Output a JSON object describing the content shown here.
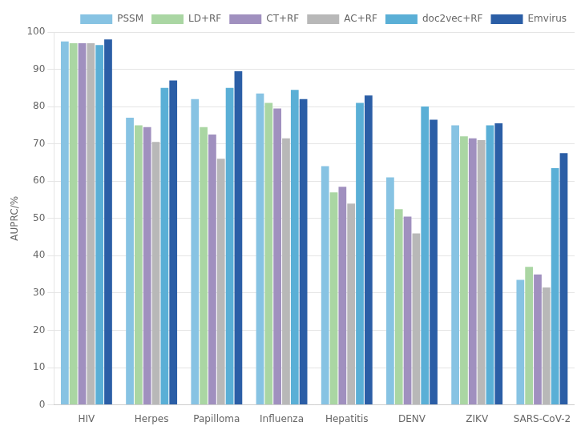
{
  "chart_data": {
    "type": "bar",
    "categories": [
      "HIV",
      "Herpes",
      "Papilloma",
      "Influenza",
      "Hepatitis",
      "DENV",
      "ZIKV",
      "SARS-CoV-2"
    ],
    "series": [
      {
        "name": "PSSM",
        "color": "#87c3e3",
        "values": [
          97.5,
          77,
          82,
          83.5,
          64,
          61,
          75,
          33.5
        ]
      },
      {
        "name": "LD+RF",
        "color": "#aad6a3",
        "values": [
          97,
          75,
          74.5,
          81,
          57,
          52.5,
          72,
          37
        ]
      },
      {
        "name": "CT+RF",
        "color": "#a090bf",
        "values": [
          97,
          74.5,
          72.5,
          79.5,
          58.5,
          50.5,
          71.5,
          35
        ]
      },
      {
        "name": "AC+RF",
        "color": "#b8b8b8",
        "values": [
          97,
          70.5,
          66,
          71.5,
          54,
          46,
          71,
          31.5
        ]
      },
      {
        "name": "doc2vec+RF",
        "color": "#5aafd6",
        "values": [
          96.5,
          85,
          85,
          84.5,
          81,
          80,
          75,
          63.5
        ]
      },
      {
        "name": "Emvirus",
        "color": "#2b5ea6",
        "values": [
          98,
          87,
          89.5,
          82,
          83,
          76.5,
          75.5,
          67.5
        ]
      }
    ],
    "ylabel": "AUPRC/%",
    "ylim": [
      0,
      100
    ],
    "yticks": [
      0,
      10,
      20,
      30,
      40,
      50,
      60,
      70,
      80,
      90,
      100
    ],
    "grid": true,
    "legend": "upper right"
  }
}
